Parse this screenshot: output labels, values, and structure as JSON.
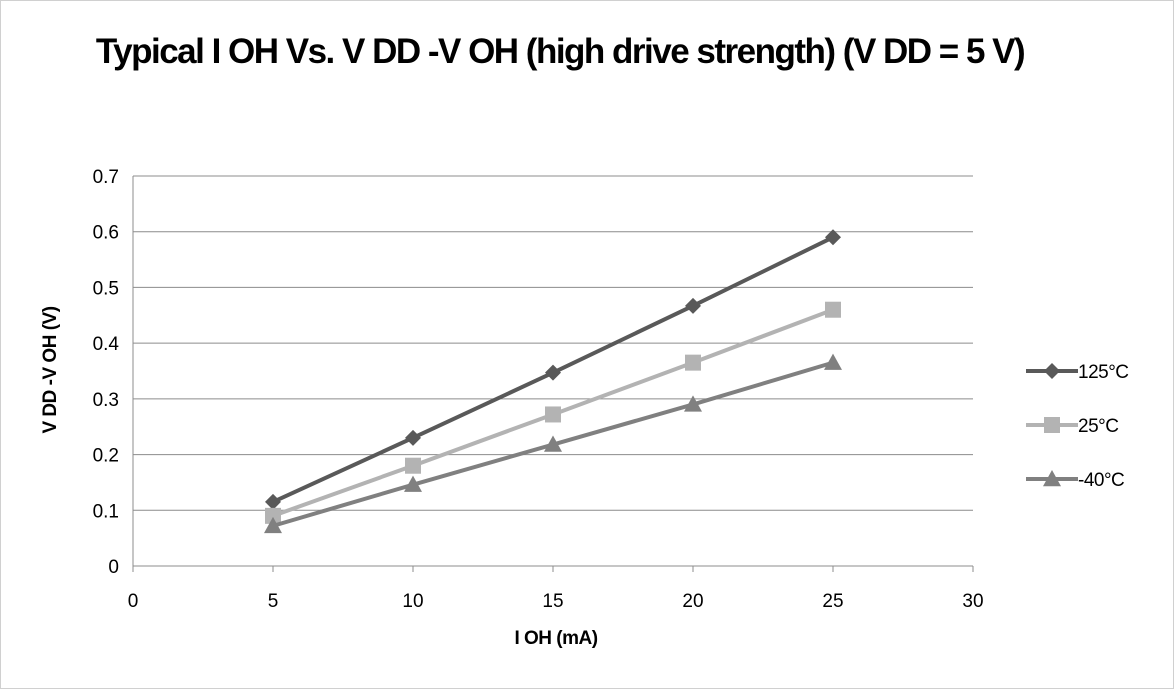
{
  "chart_data": {
    "type": "line",
    "title": "Typical I OH Vs. V DD -V OH  (high drive strength) (V DD  = 5 V)",
    "xlabel": "I OH (mA)",
    "ylabel": "V DD -V OH (V)",
    "xlim": [
      0,
      30
    ],
    "ylim": [
      0,
      0.7
    ],
    "x_ticks": [
      "0",
      "5",
      "10",
      "15",
      "20",
      "25",
      "30"
    ],
    "y_ticks": [
      "0",
      "0.1",
      "0.2",
      "0.3",
      "0.4",
      "0.5",
      "0.6",
      "0.7"
    ],
    "grid": true,
    "legend_position": "right",
    "x": [
      5,
      10,
      15,
      20,
      25
    ],
    "series": [
      {
        "name": "125°C",
        "values": [
          0.115,
          0.23,
          0.347,
          0.467,
          0.59
        ],
        "color": "#595959",
        "marker": "diamond"
      },
      {
        "name": "25°C",
        "values": [
          0.09,
          0.18,
          0.272,
          0.365,
          0.46
        ],
        "color": "#b3b3b3",
        "marker": "square"
      },
      {
        "name": "-40°C",
        "values": [
          0.072,
          0.146,
          0.218,
          0.29,
          0.365
        ],
        "color": "#808080",
        "marker": "triangle"
      }
    ]
  }
}
